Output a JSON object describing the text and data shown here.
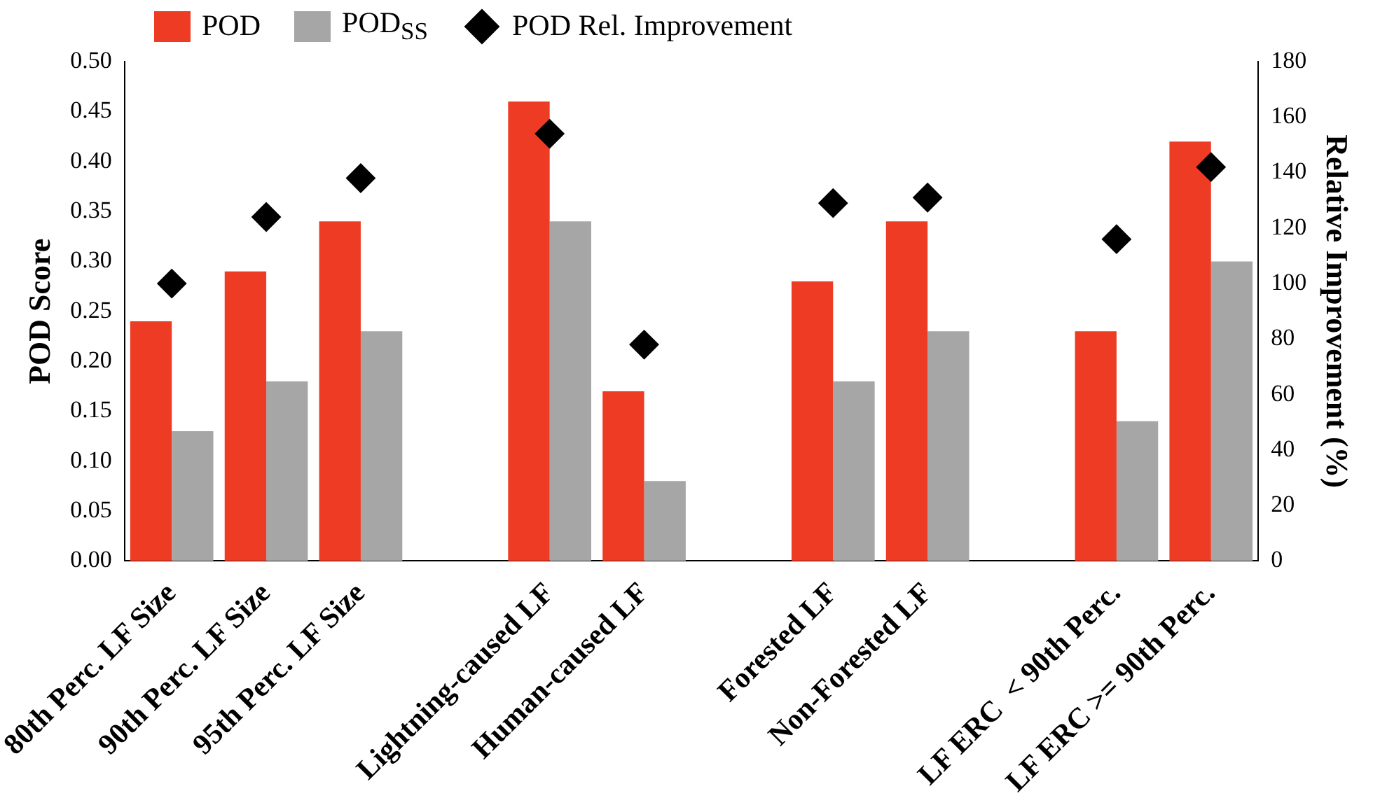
{
  "chart_data": {
    "type": "bar",
    "ylabel": "POD Score",
    "y2label": "Relative Improvement (%)",
    "categories": [
      "80th Perc. LF Size",
      "90th Perc. LF Size",
      "95th Perc. LF Size",
      null,
      "Lightning-caused LF",
      "Human-caused LF",
      null,
      "Forested LF",
      "Non-Forested LF",
      null,
      "LF ERC  < 90th Perc.",
      "LF ERC >= 90th Perc."
    ],
    "series": [
      {
        "name": "POD",
        "color": "#ee3b24",
        "values": [
          0.24,
          0.29,
          0.34,
          null,
          0.46,
          0.17,
          null,
          0.28,
          0.34,
          null,
          0.23,
          0.42
        ]
      },
      {
        "name": "POD$_{SS}$",
        "color": "#a6a6a6",
        "values": [
          0.13,
          0.18,
          0.23,
          null,
          0.34,
          0.08,
          null,
          0.18,
          0.23,
          null,
          0.14,
          0.3
        ]
      },
      {
        "name": "POD Rel. Improvement",
        "type": "scatter",
        "axis": "y2",
        "color": "#000000",
        "marker": "diamond",
        "values": [
          100,
          124,
          138,
          null,
          154,
          78,
          null,
          129,
          131,
          null,
          116,
          142
        ]
      }
    ],
    "ylim": [
      0,
      0.5
    ],
    "yticks": [
      {
        "value": 0,
        "label": "0.00"
      },
      {
        "value": 0.05,
        "label": "0.05"
      },
      {
        "value": 0.1,
        "label": "0.10"
      },
      {
        "value": 0.15,
        "label": "0.15"
      },
      {
        "value": 0.2,
        "label": "0.20"
      },
      {
        "value": 0.25,
        "label": "0.25"
      },
      {
        "value": 0.3,
        "label": "0.30"
      },
      {
        "value": 0.35,
        "label": "0.35"
      },
      {
        "value": 0.4,
        "label": "0.40"
      },
      {
        "value": 0.45,
        "label": "0.45"
      },
      {
        "value": 0.5,
        "label": "0.50"
      }
    ],
    "y2lim": [
      0,
      180
    ],
    "y2ticks": [
      0,
      20,
      40,
      60,
      80,
      100,
      120,
      140,
      160,
      180
    ],
    "grid": false,
    "legend": "top left"
  }
}
